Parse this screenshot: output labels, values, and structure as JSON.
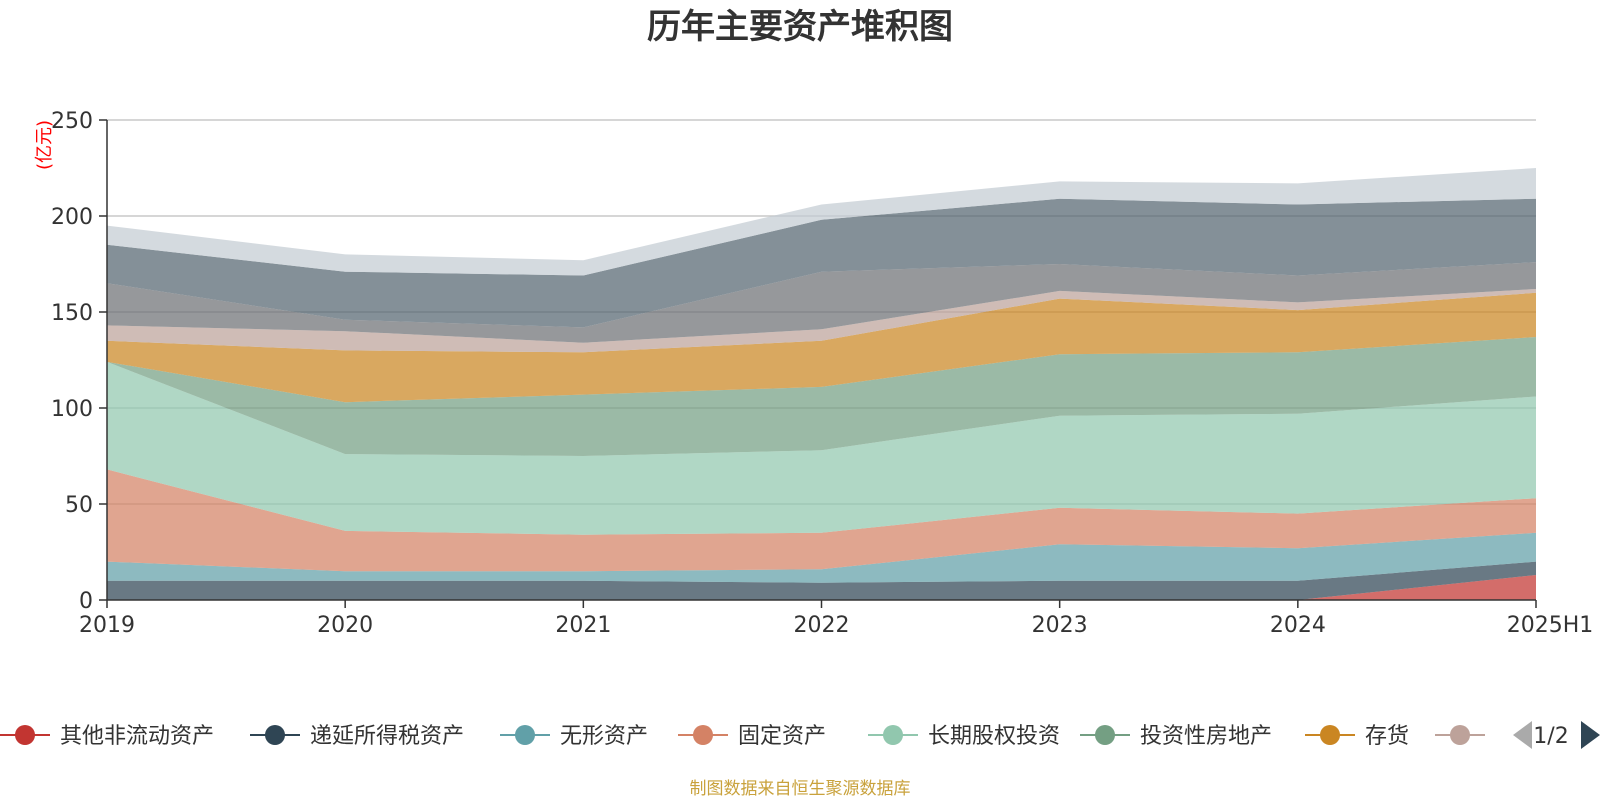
{
  "chart_data": {
    "type": "area",
    "stacked": true,
    "title": "历年主要资产堆积图",
    "ylabel": "(亿元)",
    "categories": [
      "2019",
      "2020",
      "2021",
      "2022",
      "2023",
      "2024",
      "2025H1"
    ],
    "ylim": [
      0,
      250
    ],
    "yticks": [
      0,
      50,
      100,
      150,
      200,
      250
    ],
    "grid": true,
    "legend_position": "bottom",
    "series": [
      {
        "name": "其他非流动资产",
        "color": "#c23531",
        "values": [
          0,
          0,
          0,
          0,
          0,
          0,
          13
        ]
      },
      {
        "name": "递延所得税资产",
        "color": "#2f4554",
        "values": [
          10,
          10,
          10,
          9,
          10,
          10,
          7
        ]
      },
      {
        "name": "无形资产",
        "color": "#61a0a8",
        "values": [
          10,
          5,
          5,
          7,
          19,
          17,
          15
        ]
      },
      {
        "name": "固定资产",
        "color": "#d48265",
        "values": [
          48,
          21,
          19,
          19,
          19,
          18,
          18
        ]
      },
      {
        "name": "长期股权投资",
        "color": "#91c7ae",
        "values": [
          56,
          40,
          41,
          43,
          48,
          52,
          53
        ]
      },
      {
        "name": "投资性房地产",
        "color": "#749f83",
        "values": [
          0,
          27,
          32,
          33,
          32,
          32,
          31
        ]
      },
      {
        "name": "存货",
        "color": "#ca8622",
        "values": [
          11,
          27,
          22,
          24,
          29,
          22,
          23
        ]
      },
      {
        "values": [
          8,
          10,
          5,
          6,
          4,
          4,
          2
        ],
        "color": "#bda29a"
      },
      {
        "values": [
          22,
          6,
          8,
          30,
          14,
          14,
          14
        ],
        "color": "#6e7074"
      },
      {
        "values": [
          20,
          25,
          27,
          27,
          34,
          37,
          33
        ],
        "color": "#546570"
      },
      {
        "values": [
          10,
          9,
          8,
          8,
          9,
          11,
          16
        ],
        "color": "#c4ccd3"
      }
    ]
  },
  "legend_page": "1/2",
  "footer": "制图数据来自恒生聚源数据库"
}
